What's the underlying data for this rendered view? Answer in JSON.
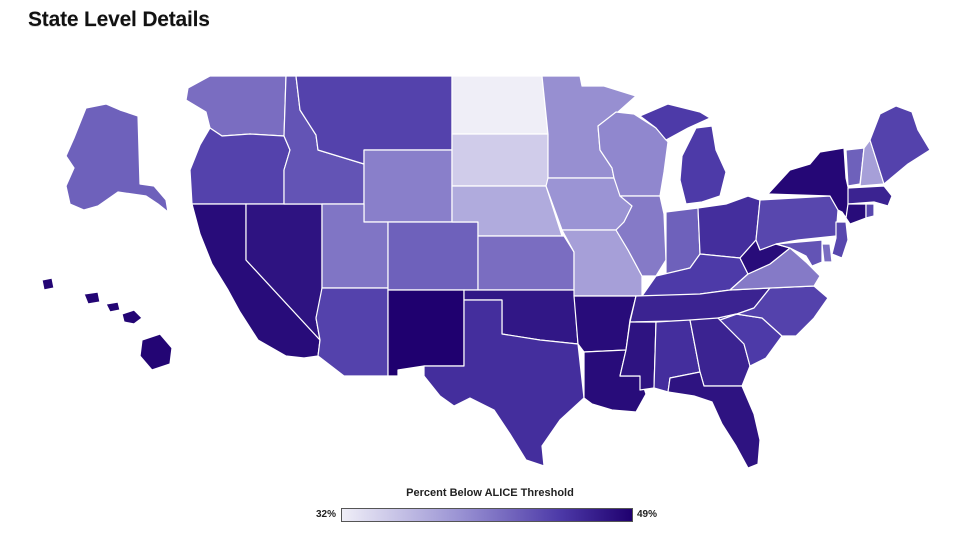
{
  "page": {
    "title": "State Level Details"
  },
  "legend": {
    "title": "Percent Below ALICE Threshold",
    "min_label": "32%",
    "max_label": "49%",
    "min_value": 32,
    "max_value": 49,
    "color_low": "#efeef7",
    "color_high": "#1f006f"
  },
  "map": {
    "type": "choropleth",
    "region": "United States",
    "states": [
      {
        "code": "WA",
        "level": 0.55
      },
      {
        "code": "OR",
        "level": 0.72
      },
      {
        "code": "CA",
        "level": 0.95
      },
      {
        "code": "NV",
        "level": 0.92
      },
      {
        "code": "ID",
        "level": 0.65
      },
      {
        "code": "MT",
        "level": 0.72
      },
      {
        "code": "WY",
        "level": 0.48
      },
      {
        "code": "UT",
        "level": 0.52
      },
      {
        "code": "AZ",
        "level": 0.72
      },
      {
        "code": "CO",
        "level": 0.6
      },
      {
        "code": "NM",
        "level": 1.0
      },
      {
        "code": "ND",
        "level": 0.0
      },
      {
        "code": "SD",
        "level": 0.15
      },
      {
        "code": "NE",
        "level": 0.3
      },
      {
        "code": "KS",
        "level": 0.55
      },
      {
        "code": "OK",
        "level": 0.9
      },
      {
        "code": "TX",
        "level": 0.8
      },
      {
        "code": "MN",
        "level": 0.42
      },
      {
        "code": "IA",
        "level": 0.4
      },
      {
        "code": "MO",
        "level": 0.35
      },
      {
        "code": "AR",
        "level": 0.95
      },
      {
        "code": "LA",
        "level": 0.95
      },
      {
        "code": "WI",
        "level": 0.45
      },
      {
        "code": "IL",
        "level": 0.5
      },
      {
        "code": "MS",
        "level": 0.92
      },
      {
        "code": "MI",
        "level": 0.75
      },
      {
        "code": "IN",
        "level": 0.6
      },
      {
        "code": "OH",
        "level": 0.8
      },
      {
        "code": "KY",
        "level": 0.75
      },
      {
        "code": "TN",
        "level": 0.85
      },
      {
        "code": "AL",
        "level": 0.8
      },
      {
        "code": "GA",
        "level": 0.85
      },
      {
        "code": "FL",
        "level": 0.92
      },
      {
        "code": "SC",
        "level": 0.75
      },
      {
        "code": "NC",
        "level": 0.72
      },
      {
        "code": "VA",
        "level": 0.5
      },
      {
        "code": "WV",
        "level": 0.95
      },
      {
        "code": "PA",
        "level": 0.7
      },
      {
        "code": "NY",
        "level": 0.97
      },
      {
        "code": "VT",
        "level": 0.6
      },
      {
        "code": "NH",
        "level": 0.35
      },
      {
        "code": "ME",
        "level": 0.72
      },
      {
        "code": "MA",
        "level": 0.85
      },
      {
        "code": "CT",
        "level": 0.95
      },
      {
        "code": "RI",
        "level": 0.7
      },
      {
        "code": "NJ",
        "level": 0.7
      },
      {
        "code": "DE",
        "level": 0.55
      },
      {
        "code": "MD",
        "level": 0.65
      },
      {
        "code": "AK",
        "level": 0.6
      },
      {
        "code": "HI",
        "level": 0.98
      }
    ]
  }
}
